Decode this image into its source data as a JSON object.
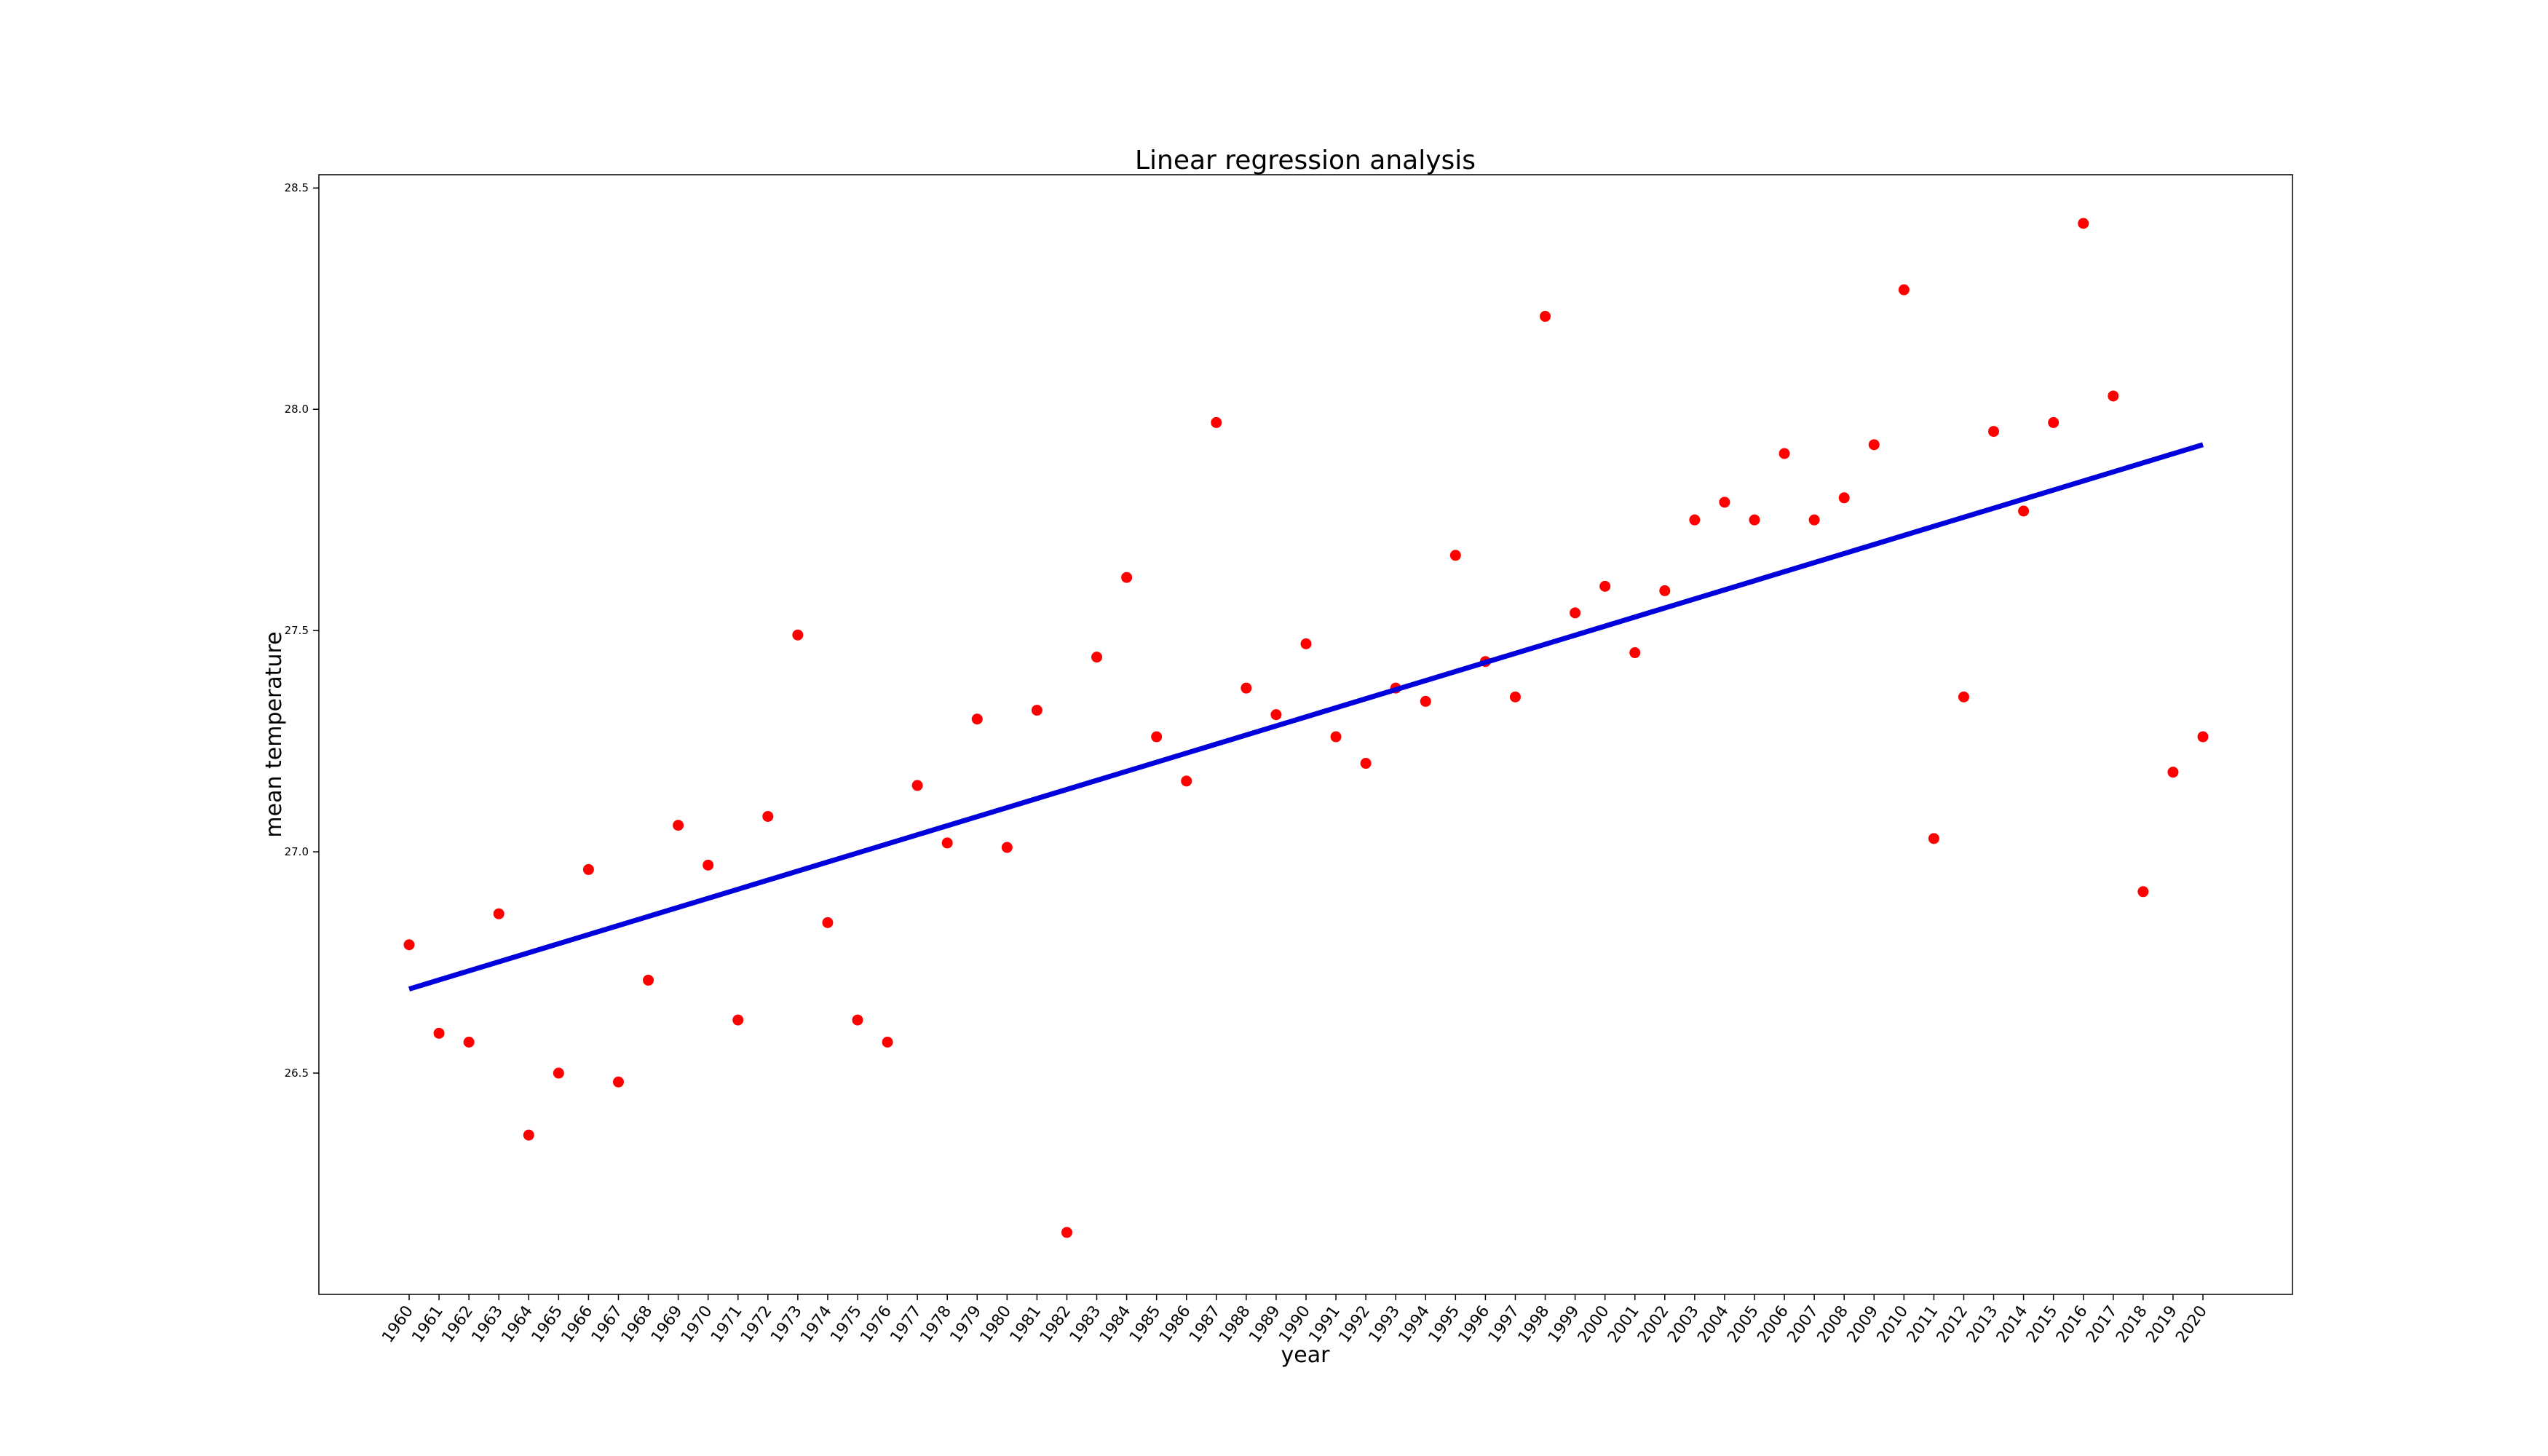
{
  "chart_data": {
    "type": "scatter",
    "title": "Linear regression analysis",
    "xlabel": "year",
    "ylabel": "mean temperature",
    "x": [
      1960,
      1961,
      1962,
      1963,
      1964,
      1965,
      1966,
      1967,
      1968,
      1969,
      1970,
      1971,
      1972,
      1973,
      1974,
      1975,
      1976,
      1977,
      1978,
      1979,
      1980,
      1981,
      1982,
      1983,
      1984,
      1985,
      1986,
      1987,
      1988,
      1989,
      1990,
      1991,
      1992,
      1993,
      1994,
      1995,
      1996,
      1997,
      1998,
      1999,
      2000,
      2001,
      2002,
      2003,
      2004,
      2005,
      2006,
      2007,
      2008,
      2009,
      2010,
      2011,
      2012,
      2013,
      2014,
      2015,
      2016,
      2017,
      2018,
      2019,
      2020
    ],
    "x_tick_labels": [
      "1960",
      "1961",
      "1962",
      "1963",
      "1964",
      "1965",
      "1966",
      "1967",
      "1968",
      "1969",
      "1970",
      "1971",
      "1972",
      "1973",
      "1974",
      "1975",
      "1976",
      "1977",
      "1978",
      "1979",
      "1980",
      "1981",
      "1982",
      "1983",
      "1984",
      "1985",
      "1986",
      "1987",
      "1988",
      "1989",
      "1990",
      "1991",
      "1992",
      "1993",
      "1994",
      "1995",
      "1996",
      "1997",
      "1998",
      "1999",
      "2000",
      "2001",
      "2002",
      "2003",
      "2004",
      "2005",
      "2006",
      "2007",
      "2008",
      "2009",
      "2010",
      "2011",
      "2012",
      "2013",
      "2014",
      "2015",
      "2016",
      "2017",
      "2018",
      "2019",
      "2020"
    ],
    "y_ticks": [
      26.5,
      27.0,
      27.5,
      28.0,
      28.5
    ],
    "y_tick_labels": [
      "26.5",
      "27.0",
      "27.5",
      "28.0",
      "28.5"
    ],
    "ylim": [
      26.0,
      28.53
    ],
    "grid": false,
    "series": [
      {
        "kind": "scatter",
        "color": "#ff0000",
        "values": [
          26.79,
          26.59,
          26.57,
          26.86,
          26.36,
          26.5,
          26.96,
          26.48,
          26.71,
          27.06,
          26.97,
          26.62,
          27.08,
          27.49,
          26.84,
          26.62,
          26.57,
          27.15,
          27.02,
          27.3,
          27.01,
          27.32,
          26.14,
          27.44,
          27.62,
          27.26,
          27.16,
          27.97,
          27.37,
          27.31,
          27.47,
          27.26,
          27.2,
          27.37,
          27.34,
          27.67,
          27.43,
          27.35,
          28.21,
          27.54,
          27.6,
          27.45,
          27.59,
          27.75,
          27.79,
          27.75,
          27.9,
          27.75,
          27.8,
          27.92,
          28.27,
          27.03,
          27.35,
          27.95,
          27.77,
          27.97,
          28.42,
          28.03,
          26.91,
          27.18,
          27.26
        ]
      },
      {
        "kind": "line",
        "color": "#0000dd",
        "x": [
          1960,
          2020
        ],
        "values": [
          26.69,
          27.92
        ]
      }
    ]
  }
}
